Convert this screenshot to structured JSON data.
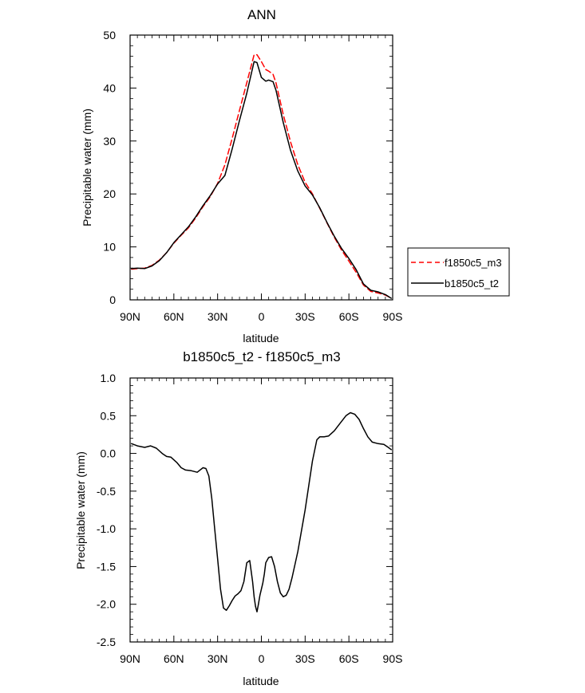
{
  "chart_data": [
    {
      "type": "line",
      "title": "ANN",
      "xlabel": "latitude",
      "ylabel": "Precipitable water (mm)",
      "xlim": [
        90,
        -90
      ],
      "ylim": [
        0,
        50
      ],
      "x_ticks": [
        90,
        60,
        30,
        0,
        -30,
        -60,
        -90
      ],
      "x_tick_labels": [
        "90N",
        "60N",
        "30N",
        "0",
        "30S",
        "60S",
        "90S"
      ],
      "y_ticks": [
        0,
        10,
        20,
        30,
        40,
        50
      ],
      "y_tick_labels": [
        "0",
        "10",
        "20",
        "30",
        "40",
        "50"
      ],
      "legend": {
        "position": "right",
        "entries": [
          "f1850c5_m3",
          "b1850c5_t2"
        ]
      },
      "series": [
        {
          "name": "f1850c5_m3",
          "color": "#ff0000",
          "dash": true,
          "x": [
            89,
            85,
            80,
            75,
            70,
            65,
            60,
            55,
            50,
            45,
            40,
            35,
            30,
            25,
            20,
            15,
            10,
            5,
            3,
            0,
            -3,
            -5,
            -8,
            -10,
            -15,
            -20,
            -25,
            -30,
            -35,
            -40,
            -45,
            -50,
            -55,
            -60,
            -65,
            -70,
            -75,
            -80,
            -85,
            -89
          ],
          "y": [
            5.8,
            5.9,
            6.0,
            6.5,
            7.5,
            8.9,
            10.7,
            12.2,
            13.6,
            15.5,
            17.6,
            19.5,
            22.0,
            25.5,
            30.5,
            35.8,
            41.0,
            46.3,
            46.3,
            45.0,
            43.5,
            43.2,
            42.6,
            41.0,
            35.0,
            29.8,
            25.5,
            22.2,
            20.0,
            17.3,
            14.5,
            11.8,
            9.4,
            7.3,
            5.2,
            2.8,
            1.6,
            1.3,
            0.9,
            0.3
          ]
        },
        {
          "name": "b1850c5_t2",
          "color": "#000000",
          "dash": false,
          "x": [
            89,
            85,
            80,
            75,
            70,
            65,
            60,
            55,
            50,
            45,
            40,
            35,
            30,
            25,
            20,
            15,
            10,
            5,
            3,
            0,
            -3,
            -5,
            -8,
            -10,
            -15,
            -20,
            -25,
            -30,
            -35,
            -40,
            -45,
            -50,
            -55,
            -60,
            -65,
            -70,
            -75,
            -80,
            -85,
            -89
          ],
          "y": [
            5.9,
            6.0,
            5.9,
            6.4,
            7.4,
            8.9,
            10.8,
            12.3,
            13.8,
            15.7,
            17.8,
            19.7,
            21.9,
            23.5,
            28.5,
            33.9,
            39.0,
            45.0,
            44.8,
            42.0,
            41.3,
            41.5,
            41.2,
            39.6,
            33.5,
            28.2,
            24.3,
            21.5,
            19.8,
            17.4,
            14.6,
            12.0,
            9.7,
            7.8,
            5.7,
            3.0,
            1.8,
            1.5,
            1.0,
            0.3
          ]
        }
      ]
    },
    {
      "type": "line",
      "title": "b1850c5_t2 - f1850c5_m3",
      "xlabel": "latitude",
      "ylabel": "Precipitable water (mm)",
      "xlim": [
        90,
        -90
      ],
      "ylim": [
        -2.5,
        1.0
      ],
      "x_ticks": [
        90,
        60,
        30,
        0,
        -30,
        -60,
        -90
      ],
      "x_tick_labels": [
        "90N",
        "60N",
        "30N",
        "0",
        "30S",
        "60S",
        "90S"
      ],
      "y_ticks": [
        -2.5,
        -2.0,
        -1.5,
        -1.0,
        -0.5,
        0.0,
        0.5,
        1.0
      ],
      "y_tick_labels": [
        "-2.5",
        "-2.0",
        "-1.5",
        "-1.0",
        "-0.5",
        "0.0",
        "0.5",
        "1.0"
      ],
      "series": [
        {
          "name": "b1850c5_t2 - f1850c5_m3",
          "color": "#000000",
          "dash": false,
          "x": [
            89,
            85,
            80,
            76,
            72,
            68,
            65,
            62,
            58,
            55,
            52,
            48,
            44,
            40,
            38,
            36,
            34,
            32,
            30,
            28,
            26,
            24,
            22,
            20,
            18,
            16,
            14,
            12,
            10,
            8,
            6,
            5,
            4,
            3,
            2,
            1,
            0,
            -1,
            -2,
            -3,
            -5,
            -7,
            -9,
            -11,
            -13,
            -15,
            -17,
            -19,
            -21,
            -25,
            -30,
            -35,
            -38,
            -40,
            -43,
            -46,
            -50,
            -54,
            -58,
            -61,
            -64,
            -67,
            -70,
            -73,
            -76,
            -80,
            -84,
            -87,
            -89
          ],
          "y": [
            0.13,
            0.1,
            0.08,
            0.1,
            0.07,
            0.0,
            -0.04,
            -0.05,
            -0.12,
            -0.19,
            -0.22,
            -0.23,
            -0.25,
            -0.19,
            -0.2,
            -0.3,
            -0.6,
            -1.0,
            -1.4,
            -1.8,
            -2.05,
            -2.08,
            -2.02,
            -1.95,
            -1.89,
            -1.86,
            -1.82,
            -1.7,
            -1.45,
            -1.42,
            -1.7,
            -1.9,
            -2.03,
            -2.1,
            -2.0,
            -1.88,
            -1.8,
            -1.72,
            -1.6,
            -1.45,
            -1.38,
            -1.37,
            -1.5,
            -1.7,
            -1.85,
            -1.9,
            -1.88,
            -1.8,
            -1.65,
            -1.3,
            -0.75,
            -0.1,
            0.18,
            0.22,
            0.22,
            0.23,
            0.3,
            0.4,
            0.5,
            0.54,
            0.52,
            0.45,
            0.33,
            0.22,
            0.15,
            0.13,
            0.12,
            0.08,
            0.05
          ]
        }
      ]
    }
  ]
}
